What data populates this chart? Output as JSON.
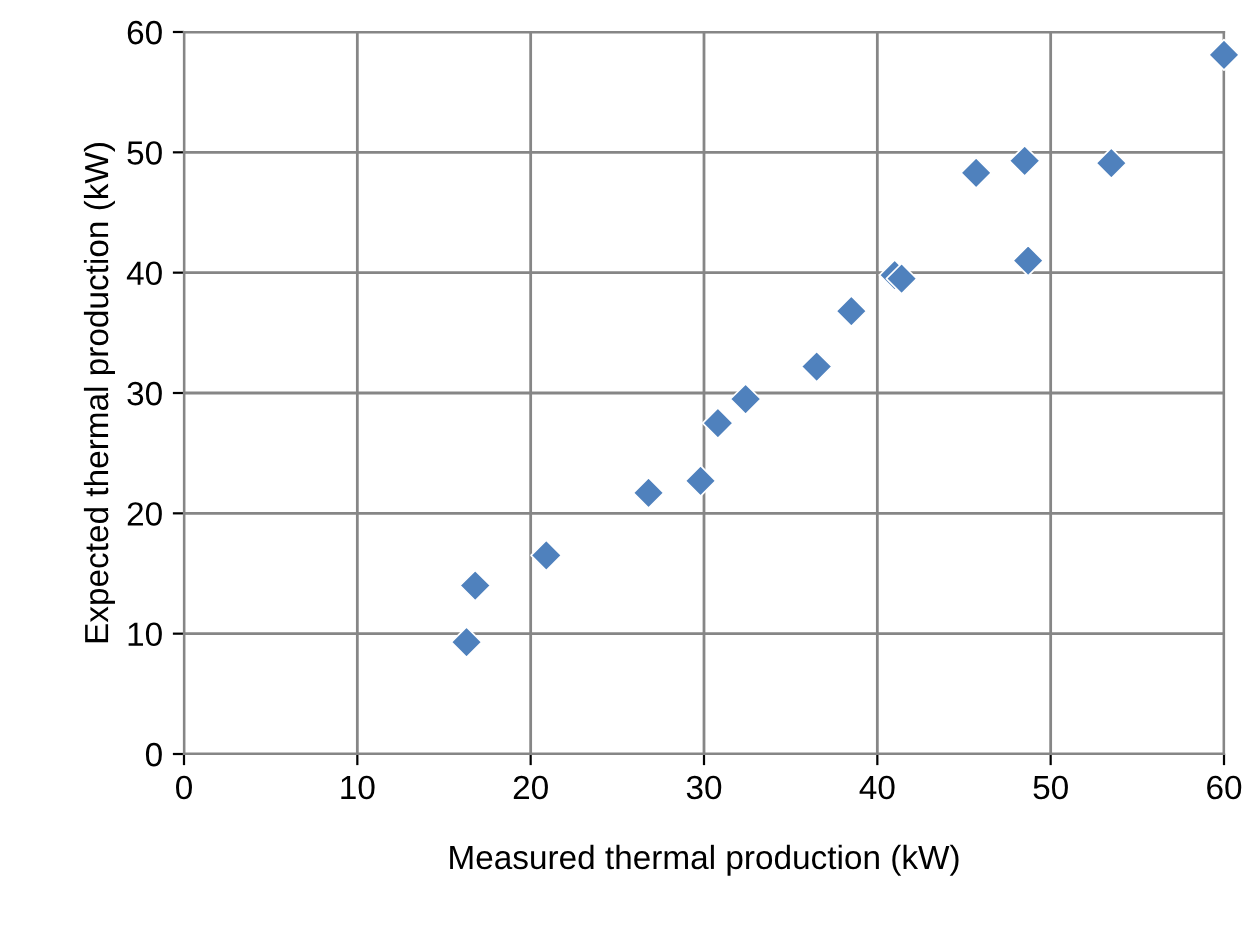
{
  "chart_data": {
    "type": "scatter",
    "xlabel": "Measured thermal production (kW)",
    "ylabel": "Expected thermal production (kW)",
    "x": [
      16.3,
      16.8,
      20.9,
      26.8,
      29.8,
      30.8,
      32.4,
      36.5,
      38.5,
      41.0,
      41.4,
      45.7,
      48.5,
      48.7,
      53.5,
      60.0
    ],
    "series": [
      {
        "color": "#4f81bd",
        "values": [
          9.3,
          14.0,
          16.5,
          21.7,
          22.7,
          27.5,
          29.5,
          32.2,
          36.8,
          39.8,
          39.5,
          48.3,
          49.3,
          41.0,
          49.1,
          58.1
        ]
      }
    ],
    "xlim": [
      0,
      60
    ],
    "xticks": [
      0,
      10,
      20,
      30,
      40,
      50,
      60
    ],
    "ylim": [
      0,
      60
    ],
    "yticks": [
      0,
      10,
      20,
      30,
      40,
      50,
      60
    ],
    "grid": true,
    "marker": "diamond",
    "legend": false
  }
}
